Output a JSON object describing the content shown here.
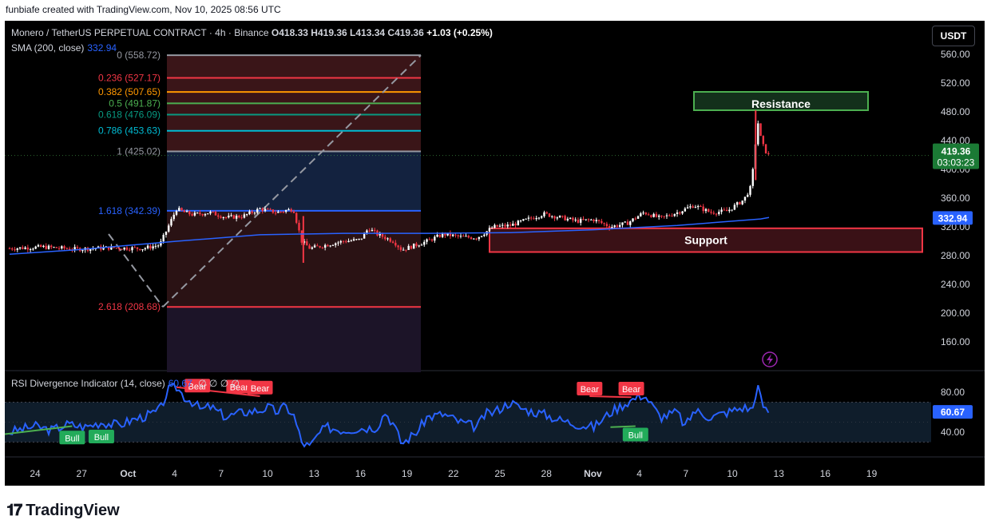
{
  "topline": "funbiafe created with TradingView.com, Nov 10, 2025 08:56 UTC",
  "header": {
    "symbol": "Monero / TetherUS PERPETUAL CONTRACT · 4h · Binance",
    "o_label": "O",
    "o": "418.33",
    "h_label": "H",
    "h": "419.36",
    "l_label": "L",
    "l": "413.34",
    "c_label": "C",
    "c": "419.36",
    "change": "+1.03 (+0.25%)"
  },
  "sma": {
    "label": "SMA (200, close)",
    "value": "332.94"
  },
  "currency_button": "USDT",
  "rsi_label": {
    "text": "RSI Divergence Indicator (14, close)",
    "value": "60.67",
    "extra": "∅ ∅ ∅ ∅"
  },
  "colors": {
    "up": "#ffffff",
    "down": "#f23645",
    "sma": "#2962ff",
    "rsi": "#2962ff",
    "bg": "#000000"
  },
  "chart_data": {
    "type": "candlestick",
    "price_axis": {
      "ylim": [
        120,
        590
      ],
      "ticks": [
        560,
        520,
        480,
        440,
        400,
        360,
        320,
        280,
        240,
        200,
        160
      ],
      "labels": [
        "560.00",
        "520.00",
        "480.00",
        "440.00",
        "400.00",
        "360.00",
        "320.00",
        "280.00",
        "240.00",
        "200.00",
        "160.00"
      ]
    },
    "x_axis_labels": [
      "24",
      "27",
      "Oct",
      "4",
      "7",
      "10",
      "13",
      "16",
      "19",
      "22",
      "25",
      "28",
      "Nov",
      "4",
      "7",
      "10",
      "13",
      "16",
      "19"
    ],
    "price_path": [
      [
        0,
        290
      ],
      [
        4,
        292
      ],
      [
        8,
        289
      ],
      [
        12,
        291
      ],
      [
        16,
        290
      ],
      [
        18,
        295
      ],
      [
        19,
        320
      ],
      [
        20,
        345
      ],
      [
        21,
        340
      ],
      [
        22,
        337
      ],
      [
        24,
        340
      ],
      [
        26,
        333
      ],
      [
        28,
        335
      ],
      [
        30,
        345
      ],
      [
        32,
        340
      ],
      [
        34,
        345
      ],
      [
        35,
        300
      ],
      [
        36,
        290
      ],
      [
        38,
        295
      ],
      [
        40,
        300
      ],
      [
        42,
        302
      ],
      [
        43,
        318
      ],
      [
        44,
        310
      ],
      [
        46,
        300
      ],
      [
        47,
        288
      ],
      [
        48,
        292
      ],
      [
        50,
        300
      ],
      [
        52,
        310
      ],
      [
        54,
        306
      ],
      [
        56,
        305
      ],
      [
        58,
        320
      ],
      [
        60,
        322
      ],
      [
        62,
        330
      ],
      [
        64,
        338
      ],
      [
        66,
        333
      ],
      [
        68,
        328
      ],
      [
        70,
        330
      ],
      [
        72,
        320
      ],
      [
        74,
        325
      ],
      [
        76,
        340
      ],
      [
        78,
        332
      ],
      [
        80,
        340
      ],
      [
        82,
        350
      ],
      [
        84,
        340
      ],
      [
        86,
        342
      ],
      [
        88,
        358
      ],
      [
        88.8,
        375
      ],
      [
        89.2,
        410
      ],
      [
        89.6,
        470
      ],
      [
        90.1,
        438
      ],
      [
        90.6,
        425
      ],
      [
        91,
        419
      ]
    ],
    "sma": {
      "name": "SMA (200, close)",
      "points": [
        [
          0,
          282
        ],
        [
          8,
          288
        ],
        [
          14,
          294
        ],
        [
          20,
          300
        ],
        [
          30,
          309
        ],
        [
          40,
          311
        ],
        [
          50,
          311
        ],
        [
          60,
          312
        ],
        [
          70,
          316
        ],
        [
          80,
          322
        ],
        [
          90,
          331
        ],
        [
          91,
          333
        ]
      ]
    },
    "fib_levels": [
      {
        "ratio": "0",
        "value": 558.72,
        "color": "#9598a1"
      },
      {
        "ratio": "0.236",
        "value": 527.17,
        "color": "#f23645"
      },
      {
        "ratio": "0.382",
        "value": 507.65,
        "color": "#ff9800"
      },
      {
        "ratio": "0.5",
        "value": 491.87,
        "color": "#4caf50"
      },
      {
        "ratio": "0.618",
        "value": 476.09,
        "color": "#089981"
      },
      {
        "ratio": "0.786",
        "value": 453.63,
        "color": "#00bcd4"
      },
      {
        "ratio": "1",
        "value": 425.02,
        "color": "#9598a1"
      },
      {
        "ratio": "1.618",
        "value": 342.39,
        "color": "#2962ff"
      },
      {
        "ratio": "2.618",
        "value": 208.68,
        "color": "#f23645"
      }
    ],
    "fib_labels": [
      "0 (558.72)",
      "0.236 (527.17)",
      "0.382 (507.65)",
      "0.5 (491.87)",
      "0.618 (476.09)",
      "0.786 (453.63)",
      "1 (425.02)",
      "1.618 (342.39)",
      "2.618 (208.68)"
    ],
    "zones": [
      {
        "label": "Resistance",
        "from": 480,
        "to": 510,
        "color": "#4caf50"
      },
      {
        "label": "Support",
        "from": 285,
        "to": 318,
        "color": "#f23645"
      }
    ],
    "last_price": {
      "value": "419.36",
      "countdown": "03:03:23"
    },
    "sma_badge": "332.94",
    "rsi": {
      "ylim": [
        20,
        100
      ],
      "ticks": [
        80,
        40
      ],
      "labels": [
        "80.00",
        "40.00"
      ],
      "band": [
        30,
        70
      ],
      "last": "60.67",
      "points": [
        [
          0,
          40
        ],
        [
          3,
          46
        ],
        [
          5,
          42
        ],
        [
          7,
          48
        ],
        [
          9,
          45
        ],
        [
          11,
          50
        ],
        [
          13,
          47
        ],
        [
          15,
          53
        ],
        [
          17,
          58
        ],
        [
          18,
          62
        ],
        [
          19,
          82
        ],
        [
          20,
          85
        ],
        [
          21,
          75
        ],
        [
          22,
          70
        ],
        [
          23,
          62
        ],
        [
          24,
          66
        ],
        [
          25,
          60
        ],
        [
          26,
          55
        ],
        [
          27,
          58
        ],
        [
          28,
          60
        ],
        [
          30,
          62
        ],
        [
          31,
          65
        ],
        [
          32,
          60
        ],
        [
          33,
          66
        ],
        [
          34,
          58
        ],
        [
          35,
          30
        ],
        [
          36,
          25
        ],
        [
          37,
          38
        ],
        [
          38,
          45
        ],
        [
          40,
          42
        ],
        [
          42,
          44
        ],
        [
          44,
          45
        ],
        [
          45,
          60
        ],
        [
          46,
          48
        ],
        [
          47,
          28
        ],
        [
          48,
          35
        ],
        [
          49,
          42
        ],
        [
          50,
          55
        ],
        [
          52,
          58
        ],
        [
          54,
          50
        ],
        [
          56,
          45
        ],
        [
          57,
          58
        ],
        [
          58,
          60
        ],
        [
          60,
          70
        ],
        [
          61,
          65
        ],
        [
          62,
          62
        ],
        [
          64,
          58
        ],
        [
          66,
          52
        ],
        [
          68,
          48
        ],
        [
          70,
          45
        ],
        [
          72,
          60
        ],
        [
          74,
          70
        ],
        [
          76,
          78
        ],
        [
          78,
          55
        ],
        [
          80,
          60
        ],
        [
          81,
          45
        ],
        [
          82,
          62
        ],
        [
          84,
          55
        ],
        [
          86,
          60
        ],
        [
          88,
          65
        ],
        [
          89,
          62
        ],
        [
          89.6,
          88
        ],
        [
          90.1,
          70
        ],
        [
          90.6,
          62
        ],
        [
          91,
          60.67
        ]
      ],
      "signals": [
        {
          "label": "Bull",
          "x": 7.5,
          "y": 35,
          "kind": "bull"
        },
        {
          "label": "Bull",
          "x": 11,
          "y": 36,
          "kind": "bull"
        },
        {
          "label": "Bear",
          "x": 22.5,
          "y": 87,
          "kind": "bear"
        },
        {
          "label": "Bear",
          "x": 27.5,
          "y": 86,
          "kind": "bear"
        },
        {
          "label": "Bear",
          "x": 30,
          "y": 85,
          "kind": "bear"
        },
        {
          "label": "Bear",
          "x": 69.5,
          "y": 84,
          "kind": "bear"
        },
        {
          "label": "Bear",
          "x": 74.5,
          "y": 84,
          "kind": "bear"
        },
        {
          "label": "Bull",
          "x": 75,
          "y": 38,
          "kind": "bull"
        }
      ]
    }
  },
  "brand": "TradingView"
}
